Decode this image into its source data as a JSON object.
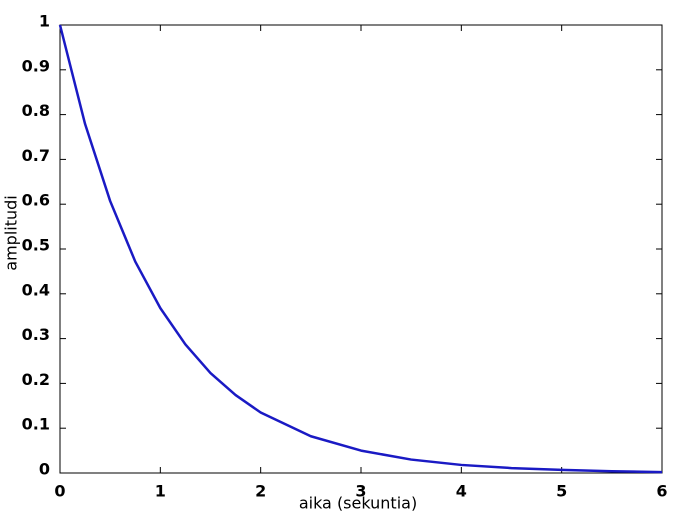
{
  "chart_data": {
    "type": "line",
    "x_label": "aika (sekuntia)",
    "y_label": "amplitudi",
    "x": [
      0,
      0.25,
      0.5,
      0.75,
      1,
      1.25,
      1.5,
      1.75,
      2,
      2.5,
      3,
      3.5,
      4,
      4.5,
      5,
      5.5,
      6
    ],
    "series": [
      {
        "color": "#1a1ac4",
        "values": [
          1,
          0.779,
          0.607,
          0.472,
          0.368,
          0.287,
          0.223,
          0.174,
          0.135,
          0.082,
          0.05,
          0.03,
          0.018,
          0.011,
          0.007,
          0.004,
          0.002
        ]
      }
    ],
    "xlim": [
      0,
      6
    ],
    "ylim": [
      0,
      1
    ],
    "xticks": [
      0,
      1,
      2,
      3,
      4,
      5,
      6
    ],
    "yticks": [
      0,
      0.1,
      0.2,
      0.3,
      0.4,
      0.5,
      0.6,
      0.7,
      0.8,
      0.9,
      1
    ],
    "grid": false
  }
}
